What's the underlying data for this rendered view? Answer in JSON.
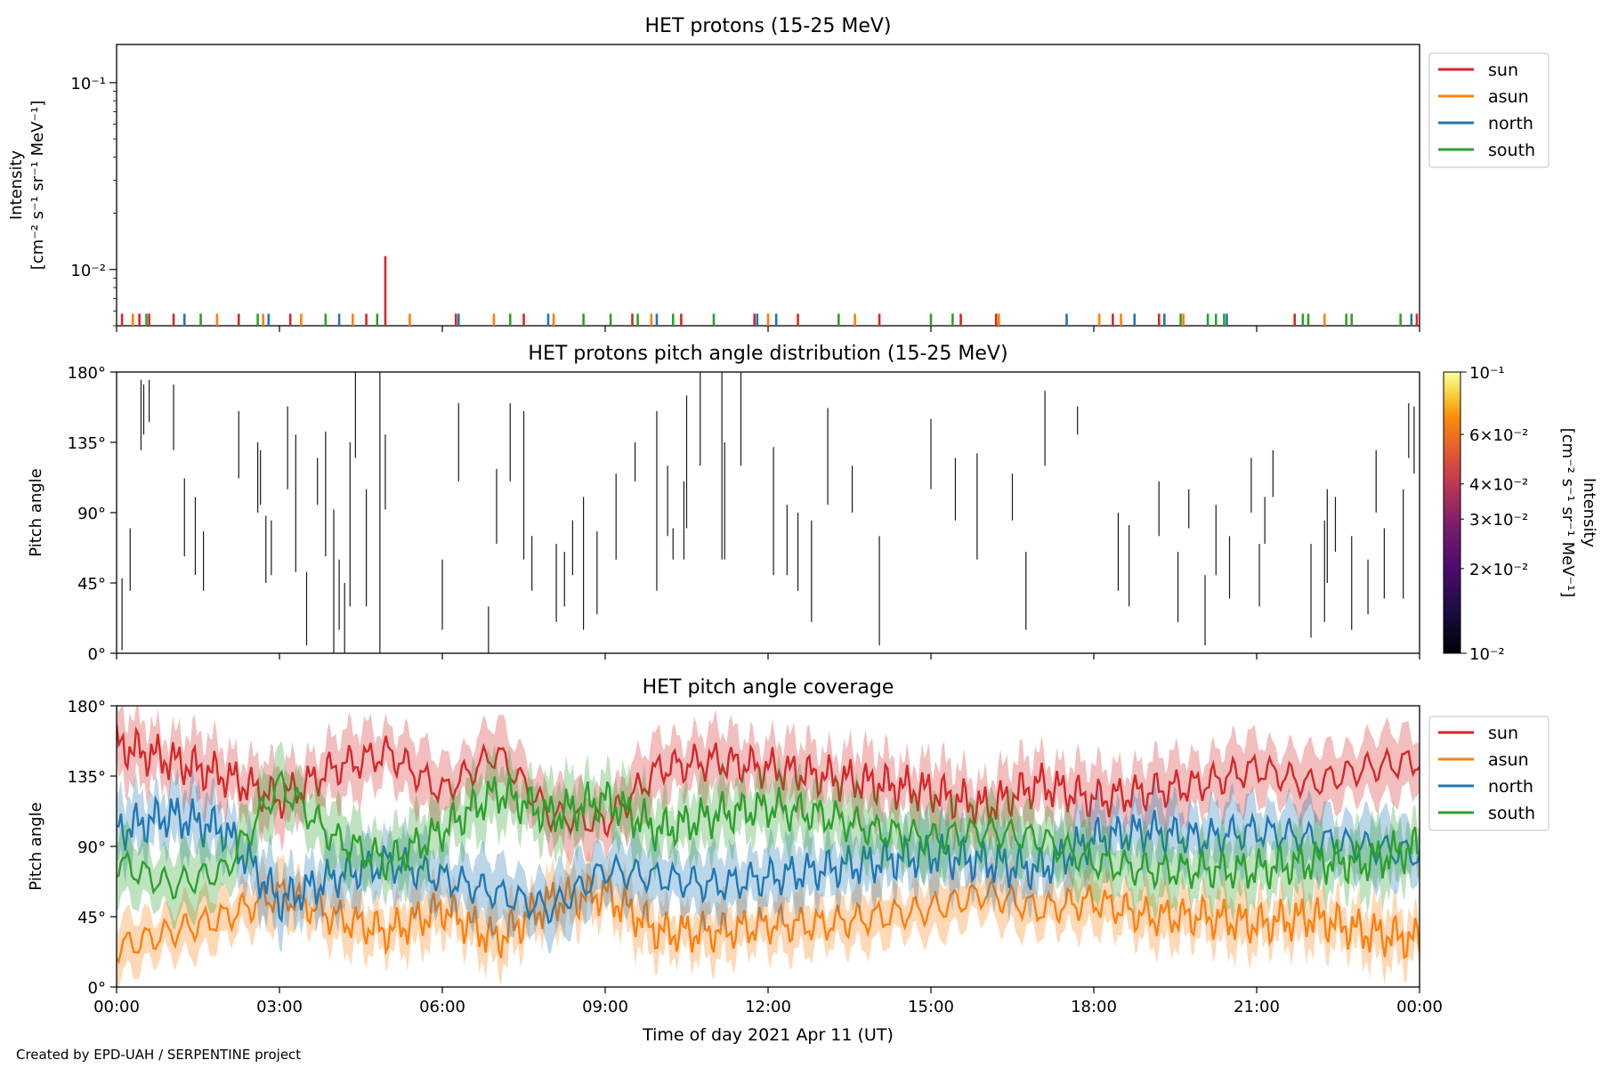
{
  "footer": "Created by EPD-UAH / SERPENTINE project",
  "xlabel": "Time of day 2021 Apr 11 (UT)",
  "x_ticks": [
    "00:00",
    "03:00",
    "06:00",
    "09:00",
    "12:00",
    "15:00",
    "18:00",
    "21:00",
    "00:00"
  ],
  "colors": {
    "sun": "#d62728",
    "asun": "#ff7f0e",
    "north": "#1f77b4",
    "south": "#2ca02c"
  },
  "chart_data": [
    {
      "type": "line",
      "title": "HET protons (15-25 MeV)",
      "ylabel_line1": "Intensity",
      "ylabel_line2": "[cm⁻² s⁻¹ sr⁻¹ MeV⁻¹]",
      "yscale": "log",
      "ylim": [
        0.005,
        0.16
      ],
      "y_ticks": [
        {
          "value": 0.01,
          "label": "10⁻²"
        },
        {
          "value": 0.1,
          "label": "10⁻¹"
        }
      ],
      "x_unit": "hours",
      "xlim": [
        0,
        24
      ],
      "legend": {
        "placement": "upper-right-outside",
        "entries": [
          "sun",
          "asun",
          "north",
          "south"
        ]
      },
      "series": [
        {
          "name": "sun",
          "color": "#d62728",
          "points": [
            [
              0.1,
              0.0058
            ],
            [
              0.42,
              0.0058
            ],
            [
              0.6,
              0.0058
            ],
            [
              1.05,
              0.0058
            ],
            [
              2.25,
              0.0058
            ],
            [
              3.2,
              0.0058
            ],
            [
              4.6,
              0.0058
            ],
            [
              4.95,
              0.0118
            ],
            [
              6.25,
              0.0058
            ],
            [
              7.5,
              0.0058
            ],
            [
              9.5,
              0.0058
            ],
            [
              10.4,
              0.0058
            ],
            [
              11.75,
              0.0058
            ],
            [
              12.55,
              0.0058
            ],
            [
              14.05,
              0.0058
            ],
            [
              15.55,
              0.0058
            ],
            [
              16.2,
              0.0058
            ],
            [
              18.35,
              0.0058
            ],
            [
              19.2,
              0.0058
            ],
            [
              21.7,
              0.0058
            ],
            [
              23.95,
              0.0058
            ]
          ]
        },
        {
          "name": "asun",
          "color": "#ff7f0e",
          "points": [
            [
              0.3,
              0.0058
            ],
            [
              1.85,
              0.0058
            ],
            [
              2.7,
              0.0058
            ],
            [
              3.4,
              0.0058
            ],
            [
              4.35,
              0.0058
            ],
            [
              5.4,
              0.0058
            ],
            [
              6.95,
              0.0058
            ],
            [
              8.05,
              0.0058
            ],
            [
              9.85,
              0.0058
            ],
            [
              12.0,
              0.0058
            ],
            [
              13.6,
              0.0058
            ],
            [
              16.25,
              0.0058
            ],
            [
              18.1,
              0.0058
            ],
            [
              18.5,
              0.0058
            ],
            [
              19.65,
              0.0058
            ],
            [
              22.25,
              0.0058
            ]
          ]
        },
        {
          "name": "north",
          "color": "#1f77b4",
          "points": [
            [
              1.25,
              0.0058
            ],
            [
              2.8,
              0.0058
            ],
            [
              4.1,
              0.0058
            ],
            [
              6.3,
              0.0058
            ],
            [
              7.95,
              0.0058
            ],
            [
              9.95,
              0.0058
            ],
            [
              11.8,
              0.0058
            ],
            [
              12.15,
              0.0058
            ],
            [
              17.5,
              0.0058
            ],
            [
              18.75,
              0.0058
            ],
            [
              19.3,
              0.0058
            ],
            [
              20.45,
              0.0058
            ],
            [
              23.85,
              0.0058
            ]
          ]
        },
        {
          "name": "south",
          "color": "#2ca02c",
          "points": [
            [
              0.55,
              0.0058
            ],
            [
              1.55,
              0.0058
            ],
            [
              2.6,
              0.0058
            ],
            [
              3.85,
              0.0058
            ],
            [
              4.8,
              0.0058
            ],
            [
              7.25,
              0.0058
            ],
            [
              8.6,
              0.0058
            ],
            [
              9.1,
              0.0058
            ],
            [
              9.6,
              0.0058
            ],
            [
              10.25,
              0.0058
            ],
            [
              11.0,
              0.0058
            ],
            [
              13.3,
              0.0058
            ],
            [
              15.0,
              0.0058
            ],
            [
              15.4,
              0.0058
            ],
            [
              19.6,
              0.0058
            ],
            [
              20.1,
              0.0058
            ],
            [
              20.25,
              0.0058
            ],
            [
              20.4,
              0.0058
            ],
            [
              21.85,
              0.0058
            ],
            [
              21.95,
              0.0058
            ],
            [
              22.65,
              0.0058
            ],
            [
              22.75,
              0.0058
            ],
            [
              23.65,
              0.0058
            ]
          ]
        }
      ]
    },
    {
      "type": "heatmap",
      "title": "HET protons pitch angle distribution (15-25 MeV)",
      "ylabel": "Pitch angle",
      "ylim": [
        0,
        180
      ],
      "y_ticks": [
        "0°",
        "45°",
        "90°",
        "135°",
        "180°"
      ],
      "xlim": [
        0,
        24
      ],
      "colorbar": {
        "label_line1": "Intensity",
        "label_line2": "[cm⁻² s⁻¹ sr⁻¹ MeV⁻¹]",
        "scale": "log",
        "range": [
          0.01,
          0.1
        ],
        "colormap": "inferno",
        "ticks": [
          {
            "value": 0.01,
            "label": "10⁻²",
            "major": true
          },
          {
            "value": 0.02,
            "label": "2×10⁻²",
            "major": false
          },
          {
            "value": 0.03,
            "label": "3×10⁻²",
            "major": false
          },
          {
            "value": 0.04,
            "label": "4×10⁻²",
            "major": false
          },
          {
            "value": 0.06,
            "label": "6×10⁻²",
            "major": false
          },
          {
            "value": 0.1,
            "label": "10⁻¹",
            "major": true
          }
        ]
      },
      "segments": [
        [
          0.1,
          2,
          48
        ],
        [
          0.25,
          40,
          80
        ],
        [
          0.45,
          130,
          175
        ],
        [
          0.5,
          140,
          172
        ],
        [
          0.6,
          148,
          175
        ],
        [
          1.05,
          130,
          172
        ],
        [
          1.25,
          62,
          112
        ],
        [
          1.45,
          50,
          100
        ],
        [
          1.6,
          40,
          78
        ],
        [
          2.25,
          112,
          155
        ],
        [
          2.6,
          90,
          135
        ],
        [
          2.65,
          95,
          130
        ],
        [
          2.75,
          45,
          88
        ],
        [
          2.85,
          50,
          85
        ],
        [
          3.15,
          105,
          158
        ],
        [
          3.3,
          52,
          140
        ],
        [
          3.5,
          5,
          52
        ],
        [
          3.7,
          95,
          125
        ],
        [
          3.85,
          62,
          142
        ],
        [
          4.0,
          0,
          92
        ],
        [
          4.1,
          15,
          60
        ],
        [
          4.2,
          0,
          45
        ],
        [
          4.3,
          30,
          135
        ],
        [
          4.4,
          125,
          180
        ],
        [
          4.6,
          30,
          105
        ],
        [
          4.85,
          0,
          180
        ],
        [
          4.95,
          92,
          140
        ],
        [
          6.0,
          15,
          60
        ],
        [
          6.3,
          110,
          160
        ],
        [
          6.85,
          0,
          30
        ],
        [
          7.0,
          70,
          118
        ],
        [
          7.25,
          110,
          160
        ],
        [
          7.5,
          60,
          155
        ],
        [
          7.65,
          40,
          75
        ],
        [
          8.1,
          20,
          70
        ],
        [
          8.25,
          30,
          65
        ],
        [
          8.4,
          50,
          85
        ],
        [
          8.6,
          15,
          100
        ],
        [
          8.85,
          25,
          78
        ],
        [
          9.2,
          60,
          115
        ],
        [
          9.55,
          110,
          135
        ],
        [
          9.95,
          40,
          155
        ],
        [
          10.15,
          75,
          120
        ],
        [
          10.25,
          60,
          80
        ],
        [
          10.45,
          60,
          110
        ],
        [
          10.5,
          80,
          165
        ],
        [
          10.75,
          120,
          180
        ],
        [
          11.15,
          60,
          180
        ],
        [
          11.2,
          60,
          135
        ],
        [
          11.5,
          120,
          180
        ],
        [
          12.1,
          50,
          132
        ],
        [
          12.35,
          50,
          95
        ],
        [
          12.55,
          40,
          90
        ],
        [
          12.8,
          20,
          85
        ],
        [
          13.1,
          95,
          157
        ],
        [
          13.55,
          90,
          120
        ],
        [
          14.05,
          5,
          75
        ],
        [
          15.0,
          105,
          150
        ],
        [
          15.45,
          85,
          125
        ],
        [
          15.85,
          60,
          128
        ],
        [
          16.5,
          85,
          115
        ],
        [
          16.75,
          15,
          65
        ],
        [
          17.1,
          120,
          168
        ],
        [
          17.7,
          140,
          158
        ],
        [
          18.45,
          40,
          90
        ],
        [
          18.65,
          30,
          82
        ],
        [
          19.2,
          75,
          110
        ],
        [
          19.55,
          20,
          65
        ],
        [
          19.75,
          80,
          105
        ],
        [
          20.05,
          5,
          50
        ],
        [
          20.25,
          50,
          95
        ],
        [
          20.5,
          35,
          75
        ],
        [
          20.9,
          90,
          125
        ],
        [
          21.05,
          30,
          70
        ],
        [
          21.15,
          70,
          100
        ],
        [
          21.3,
          100,
          130
        ],
        [
          22.0,
          10,
          70
        ],
        [
          22.25,
          20,
          85
        ],
        [
          22.3,
          45,
          105
        ],
        [
          22.45,
          65,
          100
        ],
        [
          22.75,
          15,
          75
        ],
        [
          23.05,
          25,
          60
        ],
        [
          23.2,
          90,
          130
        ],
        [
          23.35,
          35,
          80
        ],
        [
          23.7,
          35,
          105
        ],
        [
          23.8,
          125,
          160
        ],
        [
          23.9,
          115,
          158
        ]
      ]
    },
    {
      "type": "line",
      "title": "HET pitch angle coverage",
      "ylabel": "Pitch angle",
      "ylim": [
        0,
        180
      ],
      "y_ticks": [
        "0°",
        "45°",
        "90°",
        "135°",
        "180°"
      ],
      "xlim": [
        0,
        24
      ],
      "legend": {
        "placement": "upper-right-outside",
        "entries": [
          "sun",
          "asun",
          "north",
          "south"
        ]
      },
      "series": [
        {
          "name": "sun",
          "color": "#d62728",
          "x": [
            0,
            1,
            2,
            3,
            4,
            5,
            6,
            7,
            8,
            9,
            10,
            11,
            12,
            13,
            14,
            15,
            16,
            17,
            18,
            19,
            20,
            21,
            22,
            23,
            24
          ],
          "values": [
            155,
            145,
            135,
            120,
            140,
            150,
            125,
            150,
            110,
            105,
            140,
            145,
            140,
            135,
            130,
            125,
            115,
            130,
            120,
            125,
            130,
            140,
            130,
            140,
            145
          ],
          "band": 18
        },
        {
          "name": "asun",
          "color": "#ff7f0e",
          "x": [
            0,
            1,
            2,
            3,
            4,
            5,
            6,
            7,
            8,
            9,
            10,
            11,
            12,
            13,
            14,
            15,
            16,
            17,
            18,
            19,
            20,
            21,
            22,
            23,
            24
          ],
          "values": [
            25,
            35,
            45,
            60,
            45,
            35,
            50,
            30,
            55,
            60,
            35,
            35,
            40,
            40,
            45,
            50,
            60,
            50,
            55,
            45,
            45,
            40,
            45,
            35,
            30
          ],
          "band": 15
        },
        {
          "name": "north",
          "color": "#1f77b4",
          "x": [
            0,
            1,
            2,
            3,
            4,
            5,
            6,
            7,
            8,
            9,
            10,
            11,
            12,
            13,
            14,
            15,
            16,
            17,
            18,
            19,
            20,
            21,
            22,
            23,
            24
          ],
          "values": [
            100,
            110,
            100,
            55,
            70,
            80,
            70,
            60,
            50,
            75,
            70,
            65,
            70,
            75,
            80,
            85,
            80,
            75,
            95,
            100,
            95,
            100,
            95,
            90,
            85
          ],
          "band": 18
        },
        {
          "name": "south",
          "color": "#2ca02c",
          "x": [
            0,
            1,
            2,
            3,
            4,
            5,
            6,
            7,
            8,
            9,
            10,
            11,
            12,
            13,
            14,
            15,
            16,
            17,
            18,
            19,
            20,
            21,
            22,
            23,
            24
          ],
          "values": [
            80,
            65,
            75,
            130,
            95,
            80,
            100,
            125,
            110,
            120,
            100,
            110,
            115,
            110,
            100,
            95,
            100,
            95,
            80,
            75,
            75,
            75,
            80,
            80,
            90
          ],
          "band": 18
        }
      ]
    }
  ]
}
